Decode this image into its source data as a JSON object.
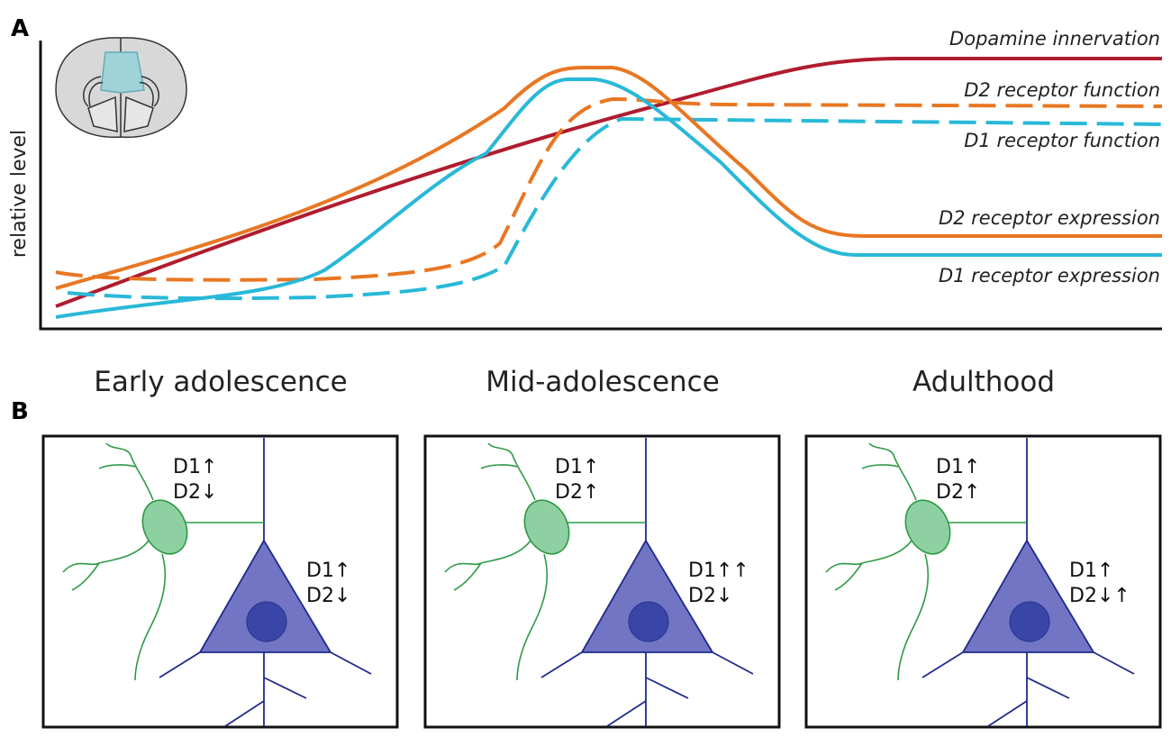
{
  "panel_a": {
    "label": "A",
    "y_axis_label": "relative level",
    "curves": [
      {
        "label": "Dopamine innervation"
      },
      {
        "label": "D2 receptor function"
      },
      {
        "label": "D1 receptor function"
      },
      {
        "label": "D2 receptor expression"
      },
      {
        "label": "D1 receptor expression"
      }
    ]
  },
  "panel_b": {
    "label": "B",
    "panels": [
      {
        "stage": "Early adolescence",
        "interneuron": [
          "D1↑",
          "D2↓"
        ],
        "pyramidal": [
          "D1↑",
          "D2↓"
        ]
      },
      {
        "stage": "Mid-adolescence",
        "interneuron": [
          "D1↑",
          "D2↑"
        ],
        "pyramidal": [
          "D1↑↑",
          "D2↓"
        ]
      },
      {
        "stage": "Adulthood",
        "interneuron": [
          "D1↑",
          "D2↑"
        ],
        "pyramidal": [
          "D1↑",
          "D2↓↑"
        ]
      }
    ]
  }
}
